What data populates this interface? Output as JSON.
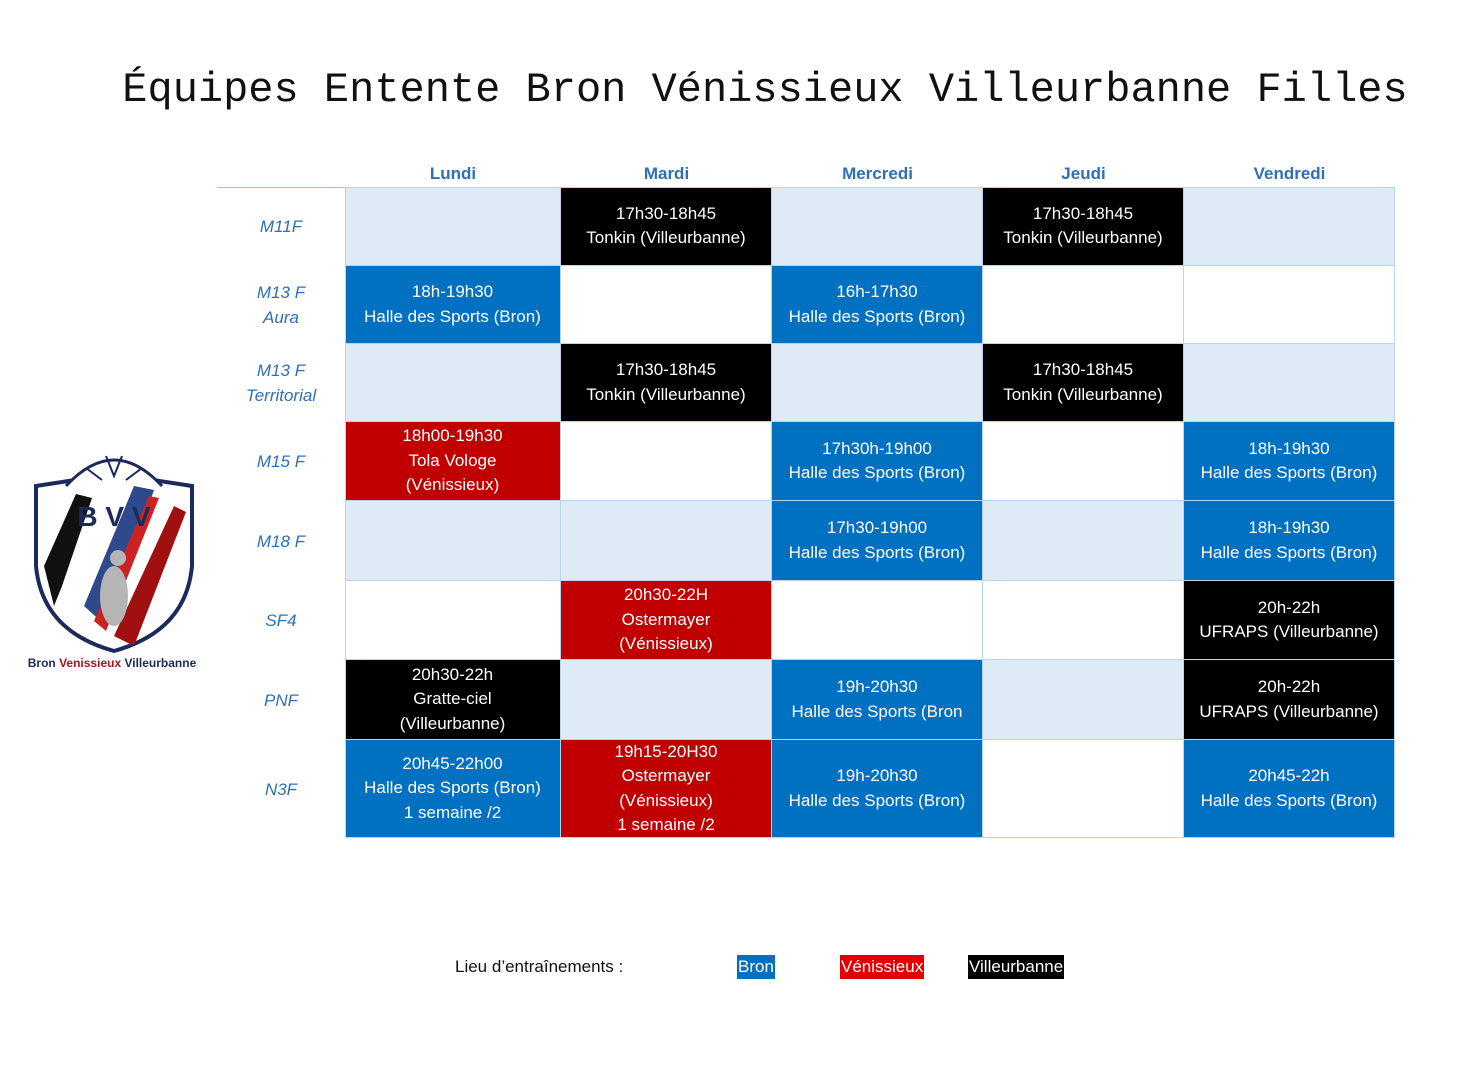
{
  "title": "Équipes Entente Bron Vénissieux Villeurbanne Filles",
  "days": [
    "Lundi",
    "Mardi",
    "Mercredi",
    "Jeudi",
    "Vendredi"
  ],
  "colors": {
    "bron": "#0070c0",
    "venissieux": "#c00000",
    "villeurbanne": "#000000",
    "empty": "#deeaf6",
    "header": "#2f6fb5"
  },
  "rows": [
    {
      "label": [
        "M11F"
      ],
      "band": "light",
      "cells": [
        null,
        {
          "lines": [
            "17h30-18h45",
            "Tonkin (Villeurbanne)"
          ],
          "site": "villeurbanne"
        },
        null,
        {
          "lines": [
            "17h30-18h45",
            "Tonkin (Villeurbanne)"
          ],
          "site": "villeurbanne"
        },
        null
      ]
    },
    {
      "label": [
        "M13 F",
        "Aura"
      ],
      "band": "white",
      "cells": [
        {
          "lines": [
            "18h-19h30",
            "Halle des Sports (Bron)"
          ],
          "site": "bron"
        },
        null,
        {
          "lines": [
            "16h-17h30",
            "Halle des Sports (Bron)"
          ],
          "site": "bron"
        },
        null,
        null
      ]
    },
    {
      "label": [
        "M13 F",
        "Territorial"
      ],
      "band": "light",
      "cells": [
        null,
        {
          "lines": [
            "17h30-18h45",
            "Tonkin (Villeurbanne)"
          ],
          "site": "villeurbanne"
        },
        null,
        {
          "lines": [
            "17h30-18h45",
            "Tonkin (Villeurbanne)"
          ],
          "site": "villeurbanne"
        },
        null
      ]
    },
    {
      "label": [
        "M15 F"
      ],
      "band": "white",
      "cells": [
        {
          "lines": [
            "18h00-19h30",
            "Tola Vologe",
            "(Vénissieux)"
          ],
          "site": "venissieux"
        },
        null,
        {
          "lines": [
            "17h30h-19h00",
            "Halle des Sports (Bron)"
          ],
          "site": "bron"
        },
        null,
        {
          "lines": [
            "18h-19h30",
            "Halle des Sports (Bron)"
          ],
          "site": "bron"
        }
      ]
    },
    {
      "label": [
        "M18 F"
      ],
      "band": "light",
      "cells": [
        null,
        null,
        {
          "lines": [
            "17h30-19h00",
            "Halle des Sports (Bron)"
          ],
          "site": "bron"
        },
        null,
        {
          "lines": [
            "18h-19h30",
            "Halle des Sports (Bron)"
          ],
          "site": "bron"
        }
      ]
    },
    {
      "label": [
        "SF4"
      ],
      "band": "white",
      "cells": [
        null,
        {
          "lines": [
            "20h30-22H",
            "Ostermayer",
            "(Vénissieux)"
          ],
          "site": "venissieux"
        },
        null,
        null,
        {
          "lines": [
            "20h-22h",
            "UFRAPS (Villeurbanne)"
          ],
          "site": "villeurbanne"
        }
      ]
    },
    {
      "label": [
        "PNF"
      ],
      "band": "light",
      "cells": [
        {
          "lines": [
            "20h30-22h",
            "Gratte-ciel",
            "(Villeurbanne)"
          ],
          "site": "villeurbanne"
        },
        null,
        {
          "lines": [
            "19h-20h30",
            "Halle des Sports (Bron"
          ],
          "site": "bron"
        },
        null,
        {
          "lines": [
            "20h-22h",
            "UFRAPS (Villeurbanne)"
          ],
          "site": "villeurbanne"
        }
      ]
    },
    {
      "label": [
        "N3F"
      ],
      "band": "white",
      "cells": [
        {
          "lines": [
            "20h45-22h00",
            "Halle des Sports (Bron)",
            "1 semaine /2"
          ],
          "site": "bron"
        },
        {
          "lines": [
            "19h15-20H30",
            "Ostermayer",
            "(Vénissieux)",
            "1 semaine /2"
          ],
          "site": "venissieux"
        },
        {
          "lines": [
            "19h-20h30",
            "Halle des Sports (Bron)"
          ],
          "site": "bron"
        },
        null,
        {
          "lines": [
            "20h45-22h",
            "Halle des Sports (Bron)"
          ],
          "site": "bron"
        }
      ]
    }
  ],
  "logo": {
    "initials": [
      "B",
      "V",
      "V"
    ],
    "caption_parts": [
      "Bron ",
      "Venissieux",
      " Villeurbanne"
    ]
  },
  "legend": {
    "label": "Lieu d’entraînements :",
    "items": {
      "bron": "Bron",
      "venissieux": "Vénissieux",
      "villeurbanne": "Villeurbanne"
    }
  }
}
